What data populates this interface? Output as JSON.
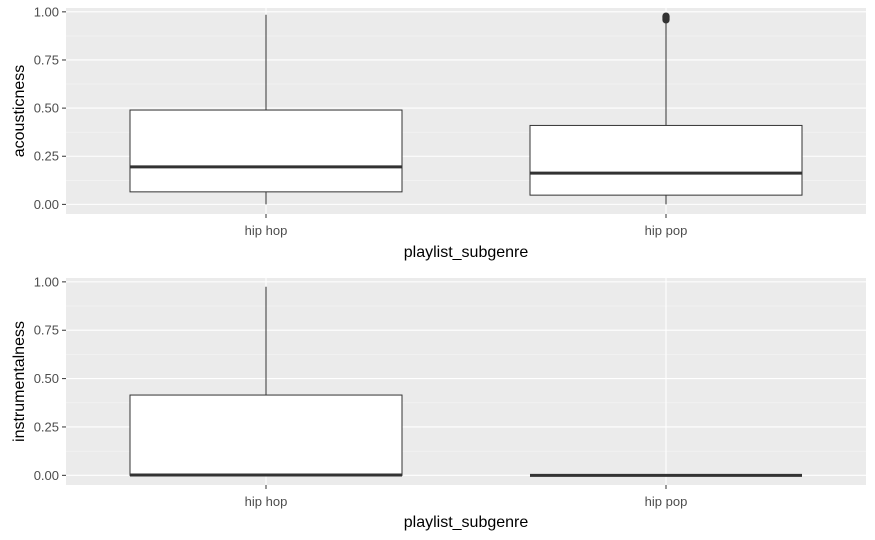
{
  "colors": {
    "panel_background": "#ebebeb",
    "grid_major": "#ffffff",
    "grid_minor": "#f5f5f5",
    "box_fill": "#ffffff",
    "box_stroke": "#333333",
    "median": "#333333",
    "tick_text": "#4d4d4d",
    "title_text": "#000000"
  },
  "chart_data": [
    {
      "type": "boxplot",
      "xlabel": "playlist_subgenre",
      "ylabel": "acousticness",
      "ylim": [
        -0.05,
        1.02
      ],
      "yticks": [
        0.0,
        0.25,
        0.5,
        0.75,
        1.0
      ],
      "ytick_labels": [
        "0.00",
        "0.25",
        "0.50",
        "0.75",
        "1.00"
      ],
      "grid": true,
      "categories": [
        "hip hop",
        "hip pop"
      ],
      "boxes": [
        {
          "category": "hip hop",
          "whisker_low": 0.0,
          "q1": 0.065,
          "median": 0.195,
          "q3": 0.49,
          "whisker_high": 0.985,
          "outliers": []
        },
        {
          "category": "hip pop",
          "whisker_low": 0.0,
          "q1": 0.048,
          "median": 0.162,
          "q3": 0.41,
          "whisker_high": 0.955,
          "outliers": [
            0.958,
            0.962,
            0.966,
            0.97,
            0.974,
            0.978
          ]
        }
      ]
    },
    {
      "type": "boxplot",
      "xlabel": "playlist_subgenre",
      "ylabel": "instrumentalness",
      "ylim": [
        -0.05,
        1.02
      ],
      "yticks": [
        0.0,
        0.25,
        0.5,
        0.75,
        1.0
      ],
      "ytick_labels": [
        "0.00",
        "0.25",
        "0.50",
        "0.75",
        "1.00"
      ],
      "grid": true,
      "categories": [
        "hip hop",
        "hip pop"
      ],
      "boxes": [
        {
          "category": "hip hop",
          "whisker_low": 0.0,
          "q1": 0.0,
          "median": 0.002,
          "q3": 0.415,
          "whisker_high": 0.975,
          "outliers": []
        },
        {
          "category": "hip pop",
          "whisker_low": 0.0,
          "q1": 0.0,
          "median": 0.0,
          "q3": 0.0,
          "whisker_high": 0.0,
          "outliers": []
        }
      ]
    }
  ]
}
